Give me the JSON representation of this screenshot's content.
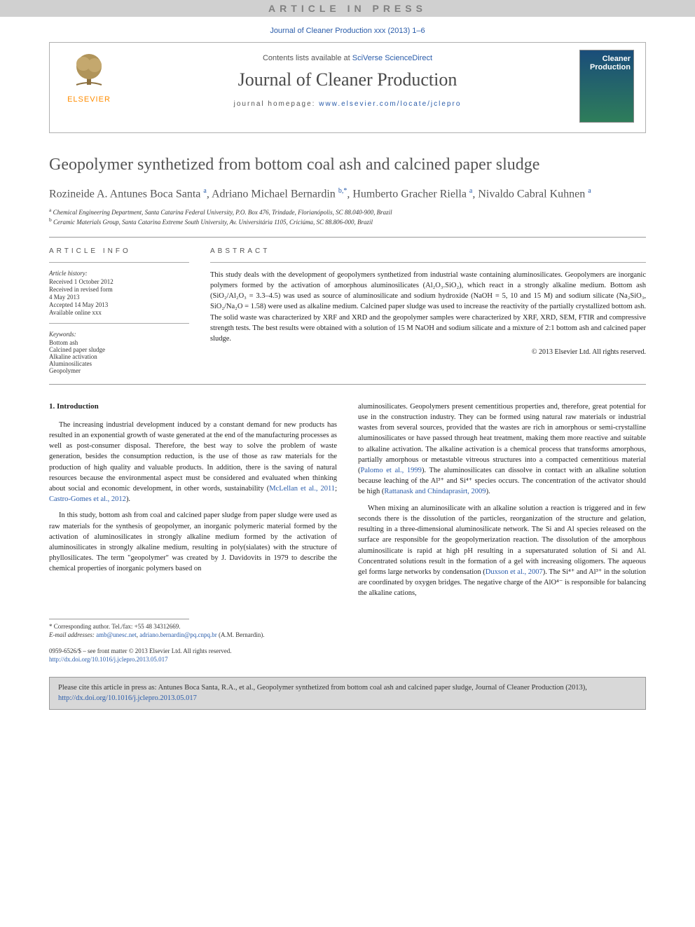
{
  "banner": {
    "text": "ARTICLE IN PRESS"
  },
  "citation_top": "Journal of Cleaner Production xxx (2013) 1–6",
  "header": {
    "elsevier": "ELSEVIER",
    "contents_prefix": "Contents lists available at ",
    "contents_link": "SciVerse ScienceDirect",
    "journal_name": "Journal of Cleaner Production",
    "homepage_prefix": "journal homepage: ",
    "homepage_url": "www.elsevier.com/locate/jclepro",
    "cover_label_top": "Cleaner",
    "cover_label_bottom": "Production"
  },
  "title": "Geopolymer synthetized from bottom coal ash and calcined paper sludge",
  "authors_html": "Rozineide A. Antunes Boca Santa <sup>a</sup>, Adriano Michael Bernardin <sup>b,*</sup>, Humberto Gracher Riella <sup>a</sup>, Nivaldo Cabral Kuhnen <sup>a</sup>",
  "affiliations": [
    "a Chemical Engineering Department, Santa Catarina Federal University, P.O. Box 476, Trindade, Florianópolis, SC 88.040-900, Brazil",
    "b Ceramic Materials Group, Santa Catarina Extreme South University, Av. Universitária 1105, Criciúma, SC 88.806-000, Brazil"
  ],
  "article_info": {
    "heading": "ARTICLE INFO",
    "history_label": "Article history:",
    "history": [
      "Received 1 October 2012",
      "Received in revised form",
      "4 May 2013",
      "Accepted 14 May 2013",
      "Available online xxx"
    ],
    "keywords_label": "Keywords:",
    "keywords": [
      "Bottom ash",
      "Calcined paper sludge",
      "Alkaline activation",
      "Aluminosilicates",
      "Geopolymer"
    ]
  },
  "abstract": {
    "heading": "ABSTRACT",
    "text": "This study deals with the development of geopolymers synthetized from industrial waste containing aluminosilicates. Geopolymers are inorganic polymers formed by the activation of amorphous aluminosilicates (Al₂O₃.SiO₂), which react in a strongly alkaline medium. Bottom ash (SiO₂/Al₂O₃ = 3.3–4.5) was used as source of aluminosilicate and sodium hydroxide (NaOH = 5, 10 and 15 M) and sodium silicate (Na₂SiO₃, SiO₂/Na₂O = 1.58) were used as alkaline medium. Calcined paper sludge was used to increase the reactivity of the partially crystallized bottom ash. The solid waste was characterized by XRF and XRD and the geopolymer samples were characterized by XRF, XRD, SEM, FTIR and compressive strength tests. The best results were obtained with a solution of 15 M NaOH and sodium silicate and a mixture of 2:1 bottom ash and calcined paper sludge.",
    "copyright": "© 2013 Elsevier Ltd. All rights reserved."
  },
  "body": {
    "section_num": "1.",
    "section_title": "Introduction",
    "left_paras": [
      "The increasing industrial development induced by a constant demand for new products has resulted in an exponential growth of waste generated at the end of the manufacturing processes as well as post-consumer disposal. Therefore, the best way to solve the problem of waste generation, besides the consumption reduction, is the use of those as raw materials for the production of high quality and valuable products. In addition, there is the saving of natural resources because the environmental aspect must be considered and evaluated when thinking about social and economic development, in other words, sustainability (",
      "In this study, bottom ash from coal and calcined paper sludge from paper sludge were used as raw materials for the synthesis of geopolymer, an inorganic polymeric material formed by the activation of aluminosilicates in strongly alkaline medium formed by the activation of aluminosilicates in strongly alkaline medium, resulting in poly(sialates) with the structure of phyllosilicates. The term \"geopolymer\" was created by J. Davidovits in 1979 to describe the chemical properties of inorganic polymers based on"
    ],
    "left_ref1": "McLellan et al., 2011",
    "left_ref2": "Castro-Gomes et al., 2012",
    "right_paras": [
      "aluminosilicates. Geopolymers present cementitious properties and, therefore, great potential for use in the construction industry. They can be formed using natural raw materials or industrial wastes from several sources, provided that the wastes are rich in amorphous or semi-crystalline aluminosilicates or have passed through heat treatment, making them more reactive and suitable to alkaline activation. The alkaline activation is a chemical process that transforms amorphous, partially amorphous or metastable vitreous structures into a compacted cementitious material (",
      "When mixing an aluminosilicate with an alkaline solution a reaction is triggered and in few seconds there is the dissolution of the particles, reorganization of the structure and gelation, resulting in a three-dimensional aluminosilicate network. The Si and Al species released on the surface are responsible for the geopolymerization reaction. The dissolution of the amorphous aluminosilicate is rapid at high pH resulting in a supersaturated solution of Si and Al. Concentrated solutions result in the formation of a gel with increasing oligomers. The aqueous gel forms large networks by condensation ("
    ],
    "right_ref1": "Palomo et al., 1999",
    "right_mid": "). The aluminosilicates can dissolve in contact with an alkaline solution because leaching of the Al³⁺ and Si⁴⁺ species occurs. The concentration of the activator should be high (",
    "right_ref2": "Rattanask and Chindaprasirt, 2009",
    "right_ref3": "Duxson et al., 2007",
    "right_tail": "). The Si⁴⁺ and Al³⁺ in the solution are coordinated by oxygen bridges. The negative charge of the AlO⁴⁻ is responsible for balancing the alkaline cations,"
  },
  "footer": {
    "corr_label": "* Corresponding author. Tel./fax: +55 48 34312669.",
    "email_label": "E-mail addresses:",
    "email1": "amb@unesc.net",
    "email2": "adriano.bernardin@pq.cnpq.br",
    "email_suffix": "(A.M. Bernardin).",
    "issn": "0959-6526/$ – see front matter © 2013 Elsevier Ltd. All rights reserved.",
    "doi": "http://dx.doi.org/10.1016/j.jclepro.2013.05.017"
  },
  "cite_box": {
    "text_prefix": "Please cite this article in press as: Antunes Boca Santa, R.A., et al., Geopolymer synthetized from bottom coal ash and calcined paper sludge, Journal of Cleaner Production (2013), ",
    "link": "http://dx.doi.org/10.1016/j.jclepro.2013.05.017"
  },
  "colors": {
    "link": "#2a5caa",
    "banner_bg": "#d0d0d0",
    "banner_fg": "#808080",
    "citebox_bg": "#d8d8d8",
    "elsevier_orange": "#ff8c00"
  }
}
